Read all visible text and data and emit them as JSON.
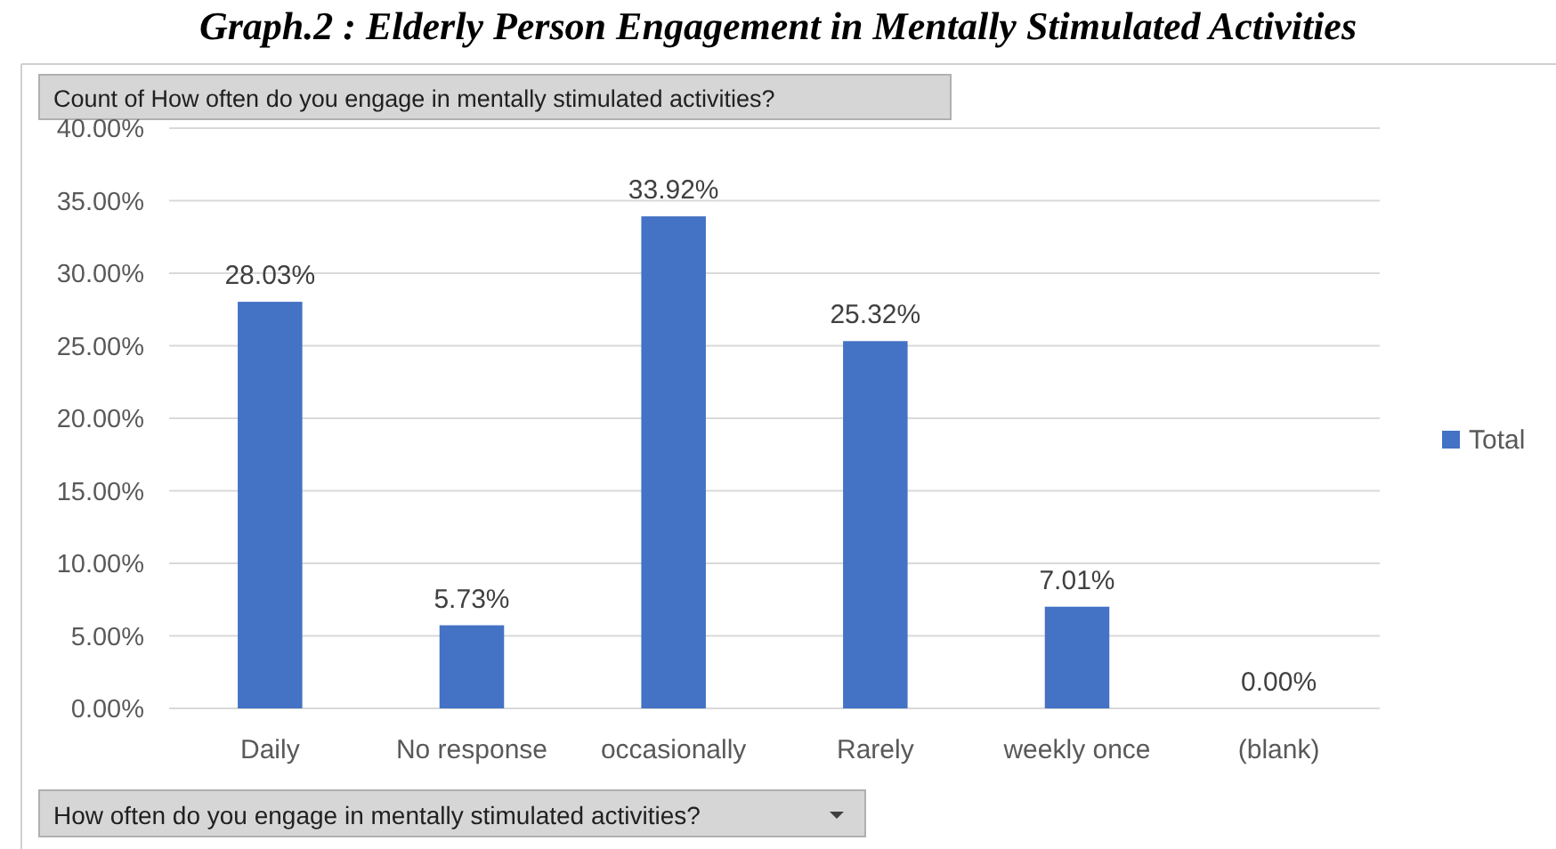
{
  "chart_data": {
    "type": "bar",
    "title": "Graph.2 : Elderly Person Engagement in Mentally Stimulated Activities",
    "subtitle": "Count of How often do you engage in mentally stimulated activities?",
    "xlabel": "How often do you engage in mentally stimulated activities?",
    "categories": [
      "Daily",
      "No response",
      "occasionally",
      "Rarely",
      "weekly once",
      "(blank)"
    ],
    "series": [
      {
        "name": "Total",
        "color": "#4472c4",
        "values": [
          28.03,
          5.73,
          33.92,
          25.32,
          7.01,
          0
        ],
        "value_labels": [
          "28.03%",
          "5.73%",
          "33.92%",
          "25.32%",
          "7.01%",
          "0.00%"
        ]
      }
    ],
    "ylim": [
      0,
      40
    ],
    "yticks": [
      {
        "value": 0,
        "label": "0.00%"
      },
      {
        "value": 5,
        "label": "5.00%"
      },
      {
        "value": 10,
        "label": "10.00%"
      },
      {
        "value": 15,
        "label": "15.00%"
      },
      {
        "value": 20,
        "label": "20.00%"
      },
      {
        "value": 25,
        "label": "25.00%"
      },
      {
        "value": 30,
        "label": "30.00%"
      },
      {
        "value": 35,
        "label": "35.00%"
      },
      {
        "value": 40,
        "label": "40.00%"
      }
    ],
    "grid": "y",
    "legend": "right"
  }
}
